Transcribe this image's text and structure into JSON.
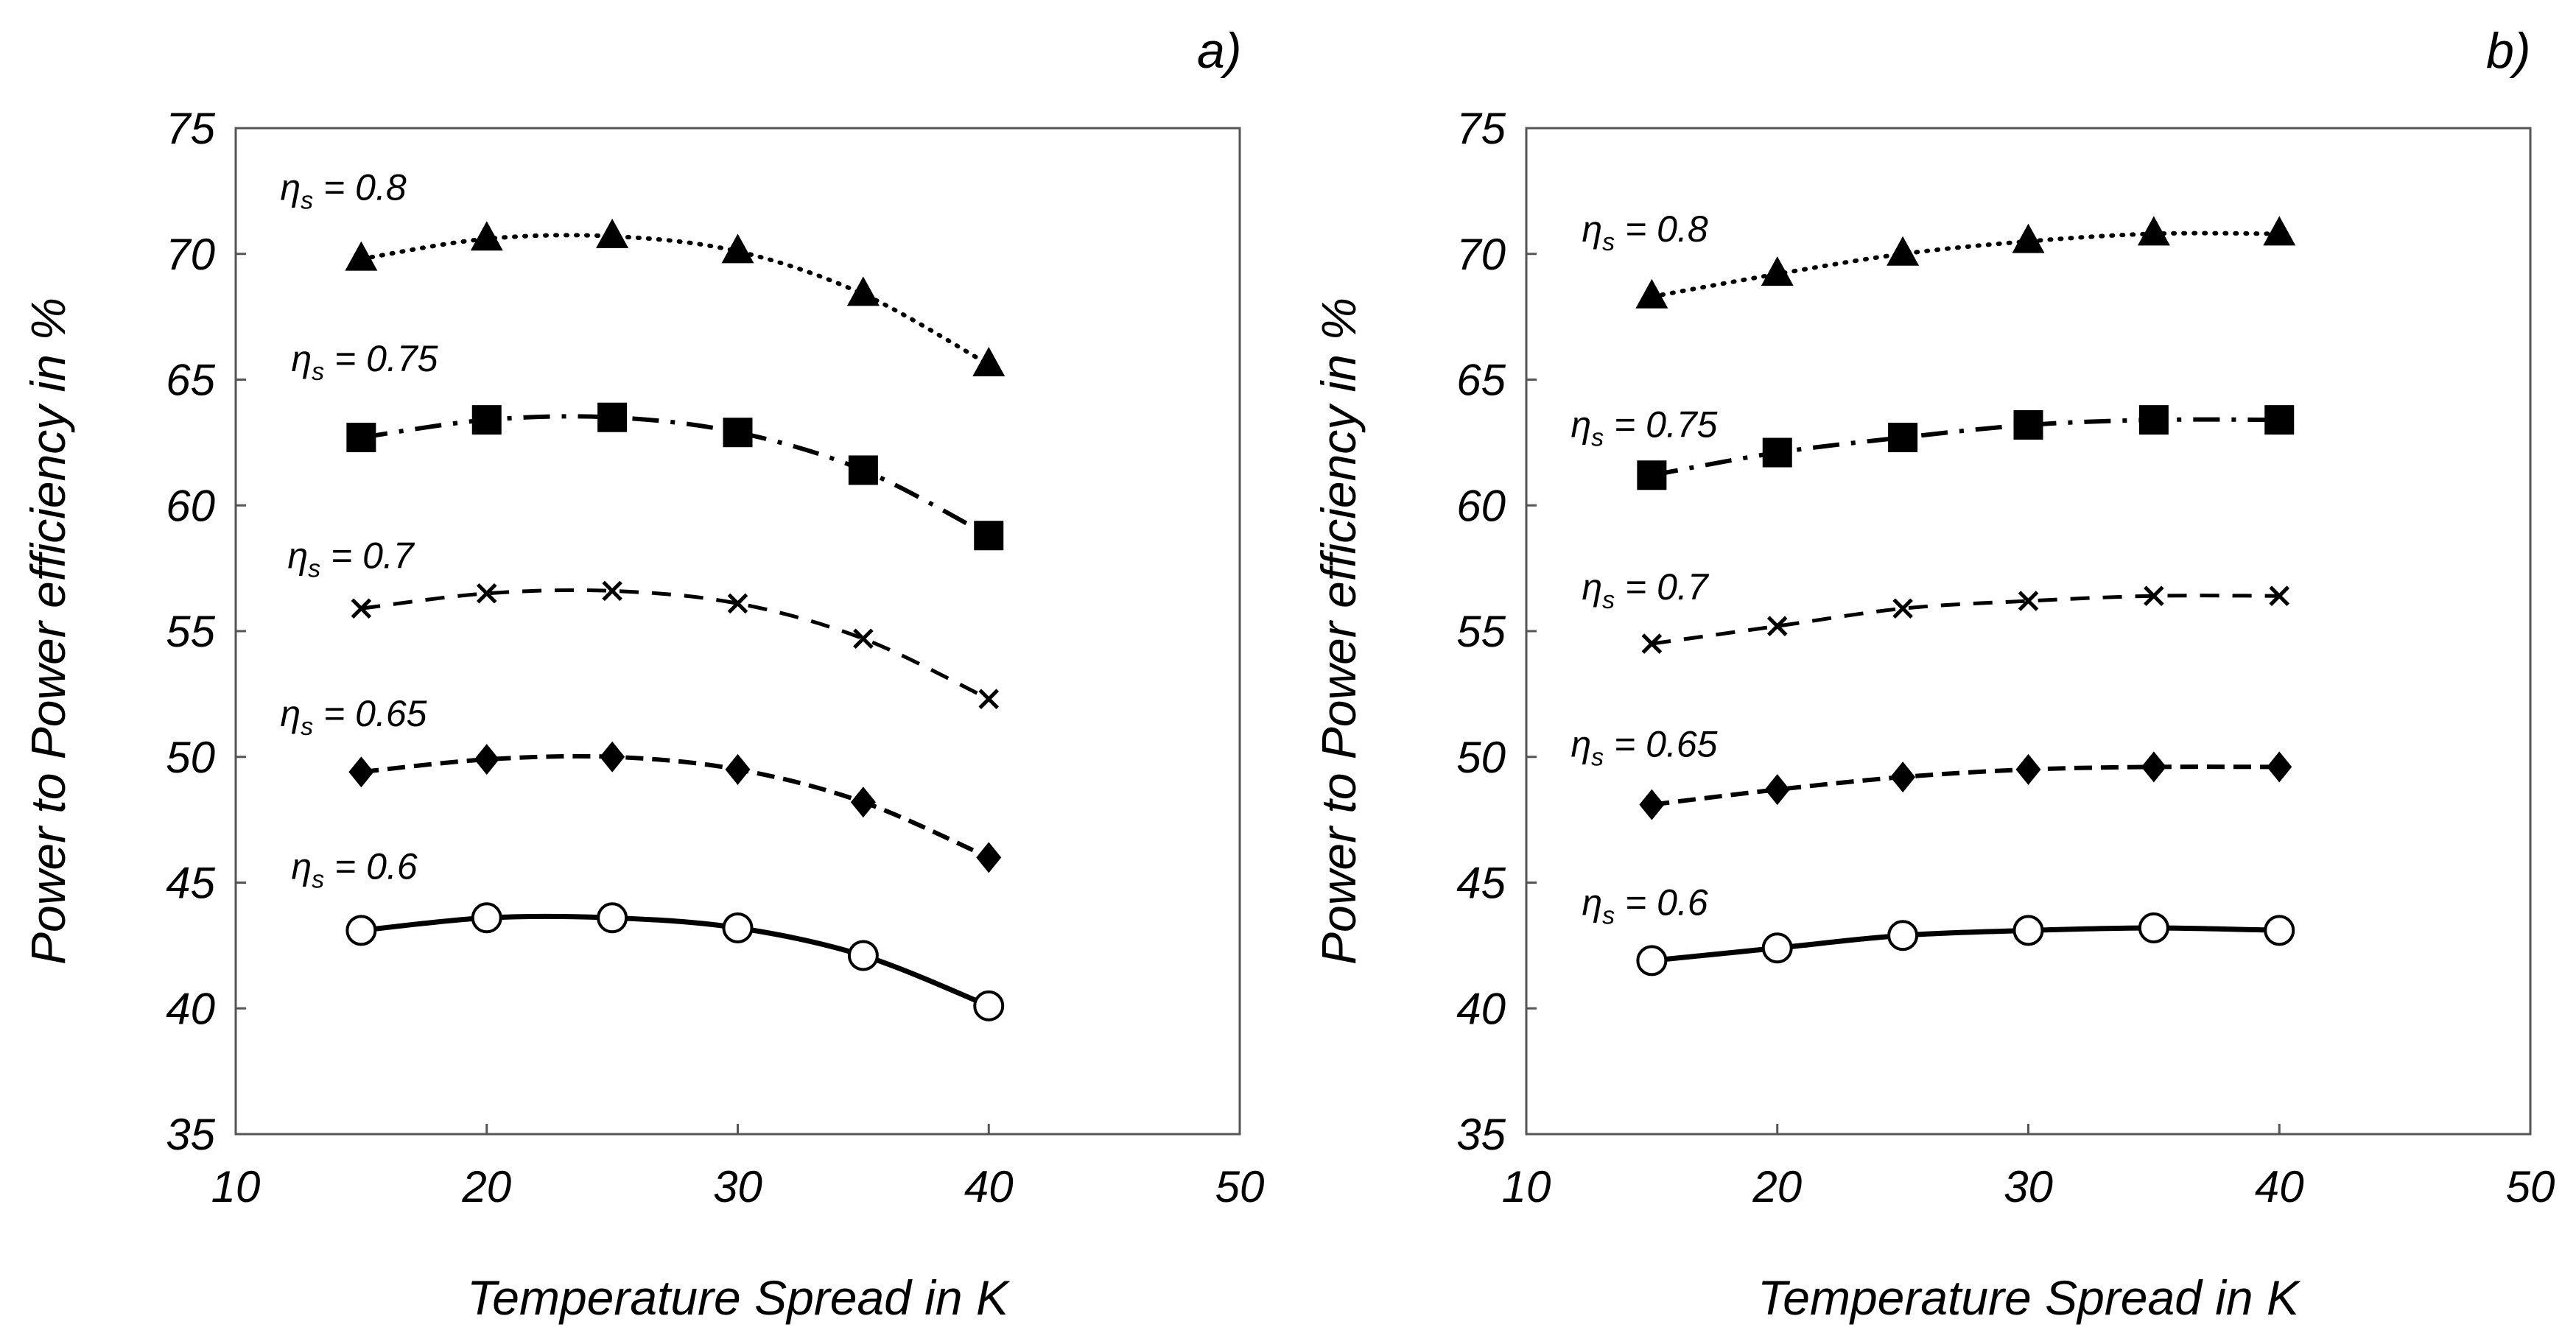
{
  "chart_data": [
    {
      "type": "line",
      "panel_label": "a)",
      "xlabel": "Temperature Spread in K",
      "ylabel": "Power to Power efficiency in %",
      "xlim": [
        10,
        50
      ],
      "ylim": [
        35,
        75
      ],
      "xticks": [
        10,
        20,
        30,
        40,
        50
      ],
      "yticks": [
        35,
        40,
        45,
        50,
        55,
        60,
        65,
        70,
        75
      ],
      "x": [
        15,
        20,
        25,
        30,
        35,
        40
      ],
      "series": [
        {
          "name": "ηs = 0.8",
          "label_main": "η",
          "label_sub": "s",
          "label_rest": " = 0.8",
          "marker": "triangle",
          "line": "dotted",
          "values": [
            69.8,
            70.6,
            70.7,
            70.1,
            68.4,
            65.6
          ]
        },
        {
          "name": "ηs = 0.75",
          "label_main": "η",
          "label_sub": "s",
          "label_rest": " = 0.75",
          "marker": "square",
          "line": "dashdot",
          "values": [
            62.7,
            63.4,
            63.5,
            62.9,
            61.4,
            58.8
          ]
        },
        {
          "name": "ηs = 0.7",
          "label_main": "η",
          "label_sub": "s",
          "label_rest": " = 0.7",
          "marker": "x",
          "line": "dashed",
          "values": [
            55.9,
            56.5,
            56.6,
            56.1,
            54.7,
            52.3
          ]
        },
        {
          "name": "ηs = 0.65",
          "label_main": "η",
          "label_sub": "s",
          "label_rest": " = 0.65",
          "marker": "diamond",
          "line": "dashed-bold",
          "values": [
            49.4,
            49.9,
            50.0,
            49.5,
            48.2,
            46.0
          ]
        },
        {
          "name": "ηs = 0.6",
          "label_main": "η",
          "label_sub": "s",
          "label_rest": " = 0.6",
          "marker": "circle",
          "line": "solid",
          "values": [
            43.1,
            43.6,
            43.6,
            43.2,
            42.1,
            40.1
          ]
        }
      ]
    },
    {
      "type": "line",
      "panel_label": "b)",
      "xlabel": "Temperature Spread in K",
      "ylabel": "Power to Power efficiency in %",
      "xlim": [
        10,
        50
      ],
      "ylim": [
        35,
        75
      ],
      "xticks": [
        10,
        20,
        30,
        40,
        50
      ],
      "yticks": [
        35,
        40,
        45,
        50,
        55,
        60,
        65,
        70,
        75
      ],
      "x": [
        15,
        20,
        25,
        30,
        35,
        40
      ],
      "series": [
        {
          "name": "ηs = 0.8",
          "label_main": "η",
          "label_sub": "s",
          "label_rest": " = 0.8",
          "marker": "triangle",
          "line": "dotted",
          "values": [
            68.3,
            69.2,
            70.0,
            70.5,
            70.8,
            70.8
          ]
        },
        {
          "name": "ηs = 0.75",
          "label_main": "η",
          "label_sub": "s",
          "label_rest": " = 0.75",
          "marker": "square",
          "line": "dashdot",
          "values": [
            61.2,
            62.1,
            62.7,
            63.2,
            63.4,
            63.4
          ]
        },
        {
          "name": "ηs = 0.7",
          "label_main": "η",
          "label_sub": "s",
          "label_rest": " = 0.7",
          "marker": "x",
          "line": "dashed",
          "values": [
            54.5,
            55.2,
            55.9,
            56.2,
            56.4,
            56.4
          ]
        },
        {
          "name": "ηs = 0.65",
          "label_main": "η",
          "label_sub": "s",
          "label_rest": " = 0.65",
          "marker": "diamond",
          "line": "dashed-bold",
          "values": [
            48.1,
            48.7,
            49.2,
            49.5,
            49.6,
            49.6
          ]
        },
        {
          "name": "ηs = 0.6",
          "label_main": "η",
          "label_sub": "s",
          "label_rest": " = 0.6",
          "marker": "circle",
          "line": "solid",
          "values": [
            41.9,
            42.4,
            42.9,
            43.1,
            43.2,
            43.1
          ]
        }
      ]
    }
  ]
}
